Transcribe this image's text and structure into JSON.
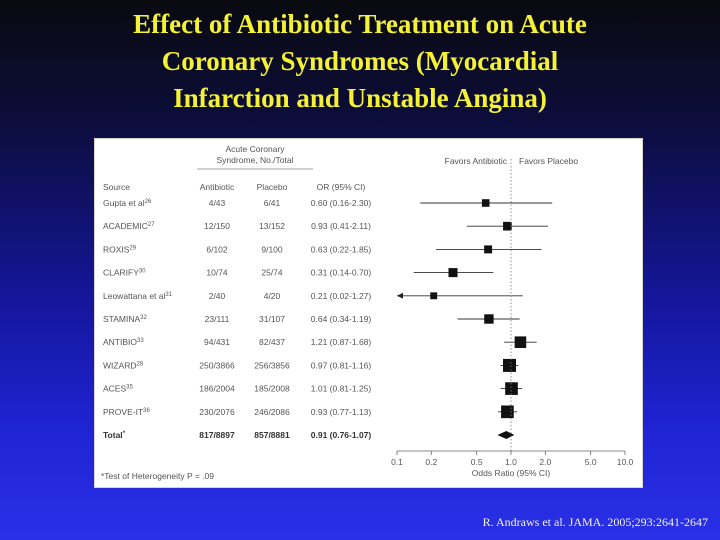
{
  "title_lines": [
    "Effect of Antibiotic Treatment on Acute",
    "Coronary Syndromes (Myocardial",
    "Infarction and Unstable Angina)"
  ],
  "citation": "R. Andraws et al. JAMA. 2005;293:2641-2647",
  "table": {
    "group_header_line1": "Acute Coronary",
    "group_header_line2": "Syndrome, No./Total",
    "col_source": "Source",
    "col_antibiotic": "Antibiotic",
    "col_placebo": "Placebo",
    "col_or": "OR (95% CI)",
    "footnote": "*Test of Heterogeneity P = .09"
  },
  "chart_data": {
    "type": "forest",
    "x_scale": "log",
    "xlim": [
      0.1,
      10.0
    ],
    "xticks": [
      "0.1",
      "0.2",
      "0.5",
      "1.0",
      "2.0",
      "5.0",
      "10.0"
    ],
    "xlabel": "Odds Ratio (95% CI)",
    "reference_line": 1.0,
    "favors_left": "Favors Antibiotic",
    "favors_right": "Favors Placebo",
    "rows": [
      {
        "source": "Gupta et al",
        "ref": "26",
        "antibiotic": "4/43",
        "placebo": "6/41",
        "or_text": "0.60 (0.16-2.30)",
        "or": 0.6,
        "lo": 0.16,
        "hi": 2.3,
        "weight": 1.0
      },
      {
        "source": "ACADEMIC",
        "ref": "27",
        "antibiotic": "12/150",
        "placebo": "13/152",
        "or_text": "0.93 (0.41-2.11)",
        "or": 0.93,
        "lo": 0.41,
        "hi": 2.11,
        "weight": 1.3
      },
      {
        "source": "ROXIS",
        "ref": "29",
        "antibiotic": "6/102",
        "placebo": "9/100",
        "or_text": "0.63 (0.22-1.85)",
        "or": 0.63,
        "lo": 0.22,
        "hi": 1.85,
        "weight": 1.1
      },
      {
        "source": "CLARIFY",
        "ref": "30",
        "antibiotic": "10/74",
        "placebo": "25/74",
        "or_text": "0.31 (0.14-0.70)",
        "or": 0.31,
        "lo": 0.14,
        "hi": 0.7,
        "weight": 1.4
      },
      {
        "source": "Leowattana et al",
        "ref": "31",
        "antibiotic": "2/40",
        "placebo": "4/20",
        "or_text": "0.21 (0.02-1.27)",
        "or": 0.21,
        "lo": 0.02,
        "hi": 1.27,
        "weight": 0.8
      },
      {
        "source": "STAMINA",
        "ref": "32",
        "antibiotic": "23/111",
        "placebo": "31/107",
        "or_text": "0.64 (0.34-1.19)",
        "or": 0.64,
        "lo": 0.34,
        "hi": 1.19,
        "weight": 1.5
      },
      {
        "source": "ANTIBIO",
        "ref": "33",
        "antibiotic": "94/431",
        "placebo": "82/437",
        "or_text": "1.21 (0.87-1.68)",
        "or": 1.21,
        "lo": 0.87,
        "hi": 1.68,
        "weight": 2.1
      },
      {
        "source": "WIZARD",
        "ref": "28",
        "antibiotic": "250/3866",
        "placebo": "256/3856",
        "or_text": "0.97 (0.81-1.16)",
        "or": 0.97,
        "lo": 0.81,
        "hi": 1.16,
        "weight": 2.5
      },
      {
        "source": "ACES",
        "ref": "35",
        "antibiotic": "186/2004",
        "placebo": "185/2008",
        "or_text": "1.01 (0.81-1.25)",
        "or": 1.01,
        "lo": 0.81,
        "hi": 1.25,
        "weight": 2.4
      },
      {
        "source": "PROVE-IT",
        "ref": "36",
        "antibiotic": "230/2076",
        "placebo": "246/2086",
        "or_text": "0.93 (0.77-1.13)",
        "or": 0.93,
        "lo": 0.77,
        "hi": 1.13,
        "weight": 2.4
      }
    ],
    "total": {
      "source": "Total",
      "ref": "*",
      "antibiotic": "817/8897",
      "placebo": "857/8881",
      "or_text": "0.91 (0.76-1.07)",
      "or": 0.91,
      "lo": 0.76,
      "hi": 1.07
    }
  }
}
